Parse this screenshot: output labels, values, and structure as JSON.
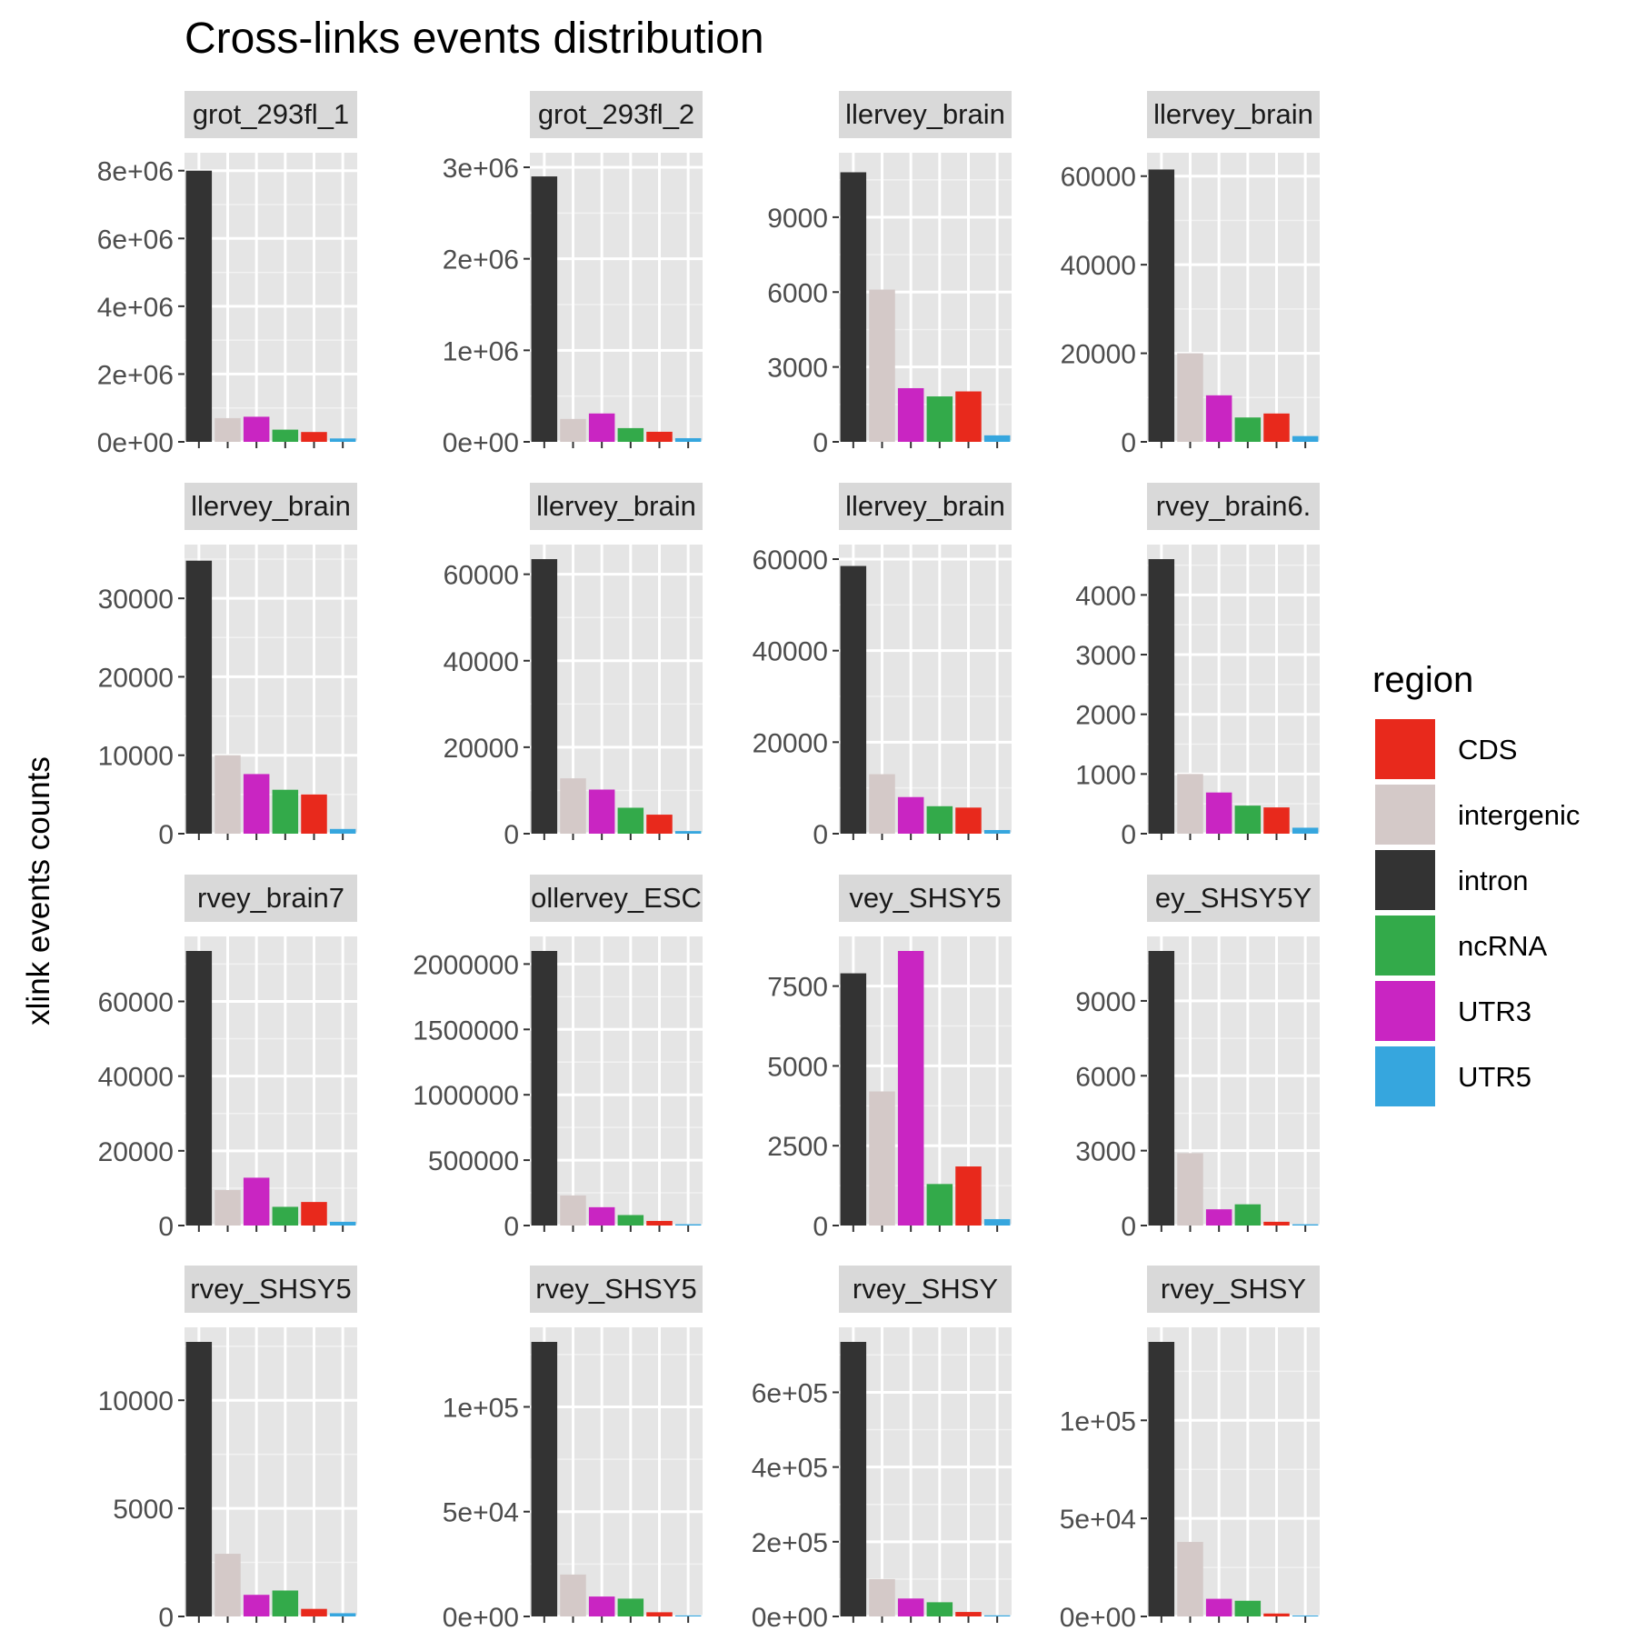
{
  "chart_data": {
    "type": "bar",
    "title": "Cross-links events distribution",
    "ylabel": "xlink events counts",
    "xlabel": "",
    "legend": {
      "title": "region",
      "position": "right",
      "entries": [
        {
          "label": "CDS",
          "color": "#E8291C"
        },
        {
          "label": "intergenic",
          "color": "#D4C9C8"
        },
        {
          "label": "intron",
          "color": "#333333"
        },
        {
          "label": "ncRNA",
          "color": "#33AA4A"
        },
        {
          "label": "UTR3",
          "color": "#C925C2"
        },
        {
          "label": "UTR5",
          "color": "#36A6DE"
        }
      ]
    },
    "categories": [
      "intron",
      "intergenic",
      "UTR3",
      "ncRNA",
      "CDS",
      "UTR5"
    ],
    "colors": {
      "intron": "#333333",
      "intergenic": "#D4C9C8",
      "UTR3": "#C925C2",
      "ncRNA": "#33AA4A",
      "CDS": "#E8291C",
      "UTR5": "#36A6DE"
    },
    "grid": true,
    "panel_background": "#E5E5E5",
    "strip_background": "#D9D9D9",
    "facets": [
      {
        "strip": "grot_293fl_1",
        "ylim": [
          0,
          8100000
        ],
        "ticks": [
          0,
          2000000,
          4000000,
          6000000,
          8000000
        ],
        "tick_labels": [
          "0e+00",
          "2e+06",
          "4e+06",
          "6e+06",
          "8e+06"
        ],
        "values": [
          8000000,
          700000,
          740000,
          360000,
          290000,
          100000
        ]
      },
      {
        "strip": "grot_293fl_2",
        "ylim": [
          0,
          3000000
        ],
        "ticks": [
          0,
          1000000,
          2000000,
          3000000
        ],
        "tick_labels": [
          "0e+00",
          "1e+06",
          "2e+06",
          "3e+06"
        ],
        "values": [
          2900000,
          250000,
          310000,
          150000,
          110000,
          40000
        ]
      },
      {
        "strip": "llervey_brain",
        "ylim": [
          0,
          11000
        ],
        "ticks": [
          0,
          3000,
          6000,
          9000
        ],
        "tick_labels": [
          "0",
          "3000",
          "6000",
          "9000"
        ],
        "values": [
          10800,
          6100,
          2150,
          1820,
          2020,
          260
        ]
      },
      {
        "strip": "llervey_brain",
        "ylim": [
          0,
          62000
        ],
        "ticks": [
          0,
          20000,
          40000,
          60000
        ],
        "tick_labels": [
          "0",
          "20000",
          "40000",
          "60000"
        ],
        "values": [
          61500,
          20000,
          10500,
          5500,
          6400,
          1300
        ]
      },
      {
        "strip": "llervey_brain",
        "ylim": [
          0,
          35000
        ],
        "ticks": [
          0,
          10000,
          20000,
          30000
        ],
        "tick_labels": [
          "0",
          "10000",
          "20000",
          "30000"
        ],
        "values": [
          34800,
          10000,
          7600,
          5600,
          5000,
          600
        ]
      },
      {
        "strip": "llervey_brain",
        "ylim": [
          0,
          63500
        ],
        "ticks": [
          0,
          20000,
          40000,
          60000
        ],
        "tick_labels": [
          "0",
          "20000",
          "40000",
          "60000"
        ],
        "values": [
          63500,
          12800,
          10200,
          6000,
          4400,
          600
        ]
      },
      {
        "strip": "llervey_brain",
        "ylim": [
          0,
          60000
        ],
        "ticks": [
          0,
          20000,
          40000,
          60000
        ],
        "tick_labels": [
          "0",
          "20000",
          "40000",
          "60000"
        ],
        "values": [
          58500,
          13000,
          8000,
          6000,
          5700,
          800
        ]
      },
      {
        "strip": "rvey_brain6.",
        "ylim": [
          0,
          4600
        ],
        "ticks": [
          0,
          1000,
          2000,
          3000,
          4000
        ],
        "tick_labels": [
          "0",
          "1000",
          "2000",
          "3000",
          "4000"
        ],
        "values": [
          4600,
          1000,
          690,
          470,
          440,
          100
        ]
      },
      {
        "strip": "rvey_brain7",
        "ylim": [
          0,
          73500
        ],
        "ticks": [
          0,
          20000,
          40000,
          60000
        ],
        "tick_labels": [
          "0",
          "20000",
          "40000",
          "60000"
        ],
        "values": [
          73500,
          9500,
          12800,
          5000,
          6300,
          1000
        ]
      },
      {
        "strip": "ollervey_ESC",
        "ylim": [
          0,
          2100000
        ],
        "ticks": [
          0,
          500000,
          1000000,
          1500000,
          2000000
        ],
        "tick_labels": [
          "0",
          "500000",
          "1000000",
          "1500000",
          "2000000"
        ],
        "values": [
          2100000,
          230000,
          140000,
          80000,
          35000,
          10000
        ]
      },
      {
        "strip": "vey_SHSY5",
        "ylim": [
          0,
          8600
        ],
        "ticks": [
          0,
          2500,
          5000,
          7500
        ],
        "tick_labels": [
          "0",
          "2500",
          "5000",
          "7500"
        ],
        "values": [
          7900,
          4200,
          8600,
          1300,
          1850,
          200
        ]
      },
      {
        "strip": "ey_SHSY5Y",
        "ylim": [
          0,
          11000
        ],
        "ticks": [
          0,
          3000,
          6000,
          9000
        ],
        "tick_labels": [
          "0",
          "3000",
          "6000",
          "9000"
        ],
        "values": [
          11000,
          2900,
          650,
          850,
          150,
          50
        ]
      },
      {
        "strip": "rvey_SHSY5",
        "ylim": [
          0,
          12700
        ],
        "ticks": [
          0,
          5000,
          10000
        ],
        "tick_labels": [
          "0",
          "5000",
          "10000"
        ],
        "values": [
          12700,
          2900,
          1000,
          1200,
          350,
          150
        ]
      },
      {
        "strip": "rvey_SHSY5",
        "ylim": [
          0,
          131000
        ],
        "ticks": [
          0,
          50000,
          100000
        ],
        "tick_labels": [
          "0e+00",
          "5e+04",
          "1e+05"
        ],
        "values": [
          131000,
          20000,
          9500,
          8500,
          2000,
          500
        ]
      },
      {
        "strip": "rvey_SHSY",
        "ylim": [
          0,
          735000
        ],
        "ticks": [
          0,
          200000,
          400000,
          600000
        ],
        "tick_labels": [
          "0e+00",
          "2e+05",
          "4e+05",
          "6e+05"
        ],
        "values": [
          735000,
          100000,
          48000,
          38000,
          12000,
          3000
        ]
      },
      {
        "strip": "rvey_SHSY",
        "ylim": [
          0,
          140000
        ],
        "ticks": [
          0,
          50000,
          100000
        ],
        "tick_labels": [
          "0e+00",
          "5e+04",
          "1e+05"
        ],
        "values": [
          140000,
          38000,
          9000,
          8000,
          1500,
          500
        ]
      }
    ]
  }
}
